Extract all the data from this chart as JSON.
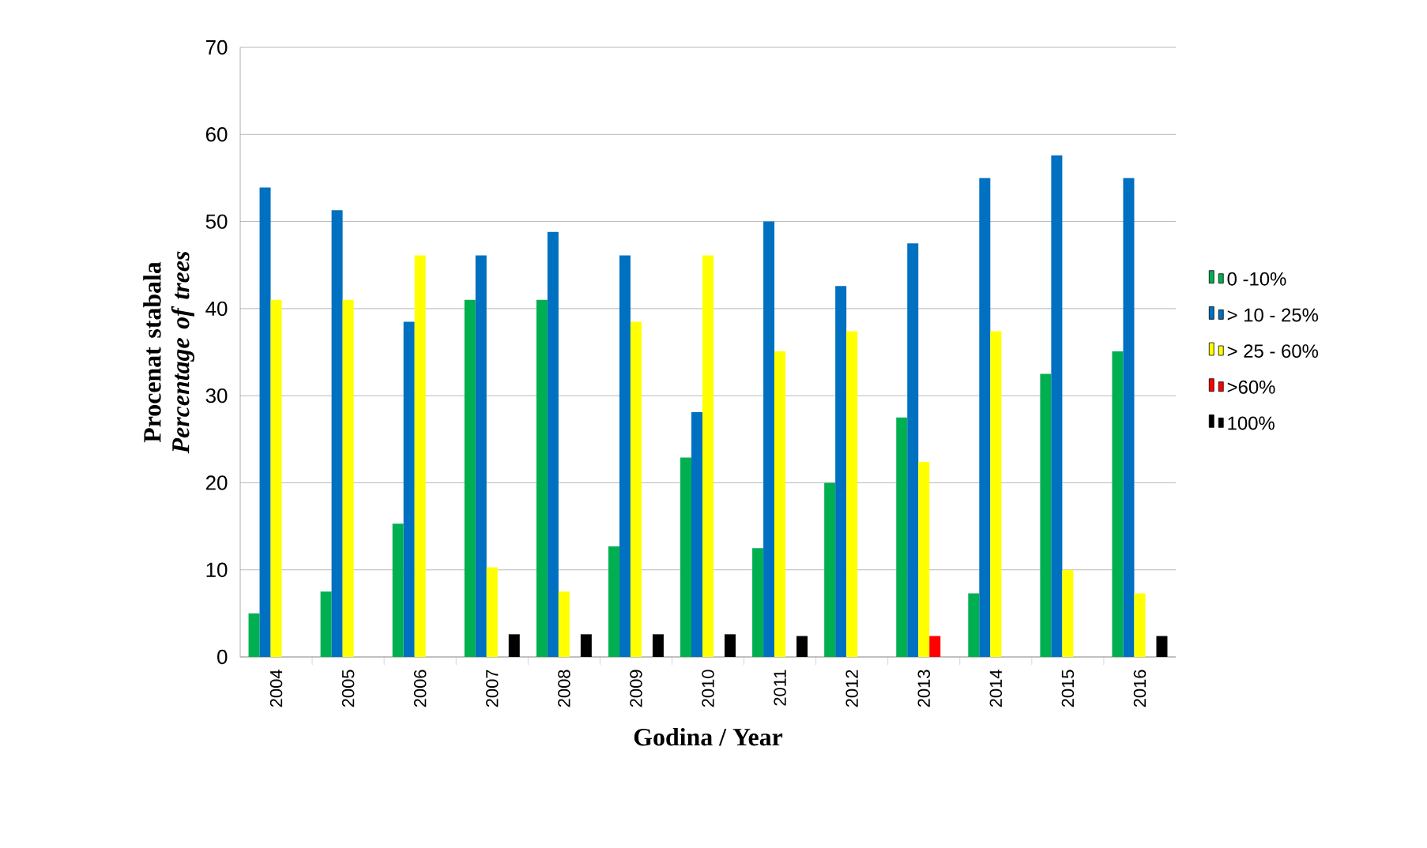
{
  "chart_data": {
    "type": "bar",
    "xlabel": "Godina / Year",
    "ylabel": "Procenat stabala *Percentage of trees*",
    "categories": [
      "2004",
      "2005",
      "2006",
      "2007",
      "2008",
      "2009",
      "2010",
      "2011",
      "2012",
      "2013",
      "2014",
      "2015",
      "2016"
    ],
    "series": [
      {
        "name": "0 -10%",
        "color": "#00b050",
        "values": [
          5,
          7.5,
          15.3,
          41,
          41,
          12.7,
          22.9,
          12.5,
          20,
          27.5,
          7.3,
          32.5,
          35.1
        ]
      },
      {
        "name": "> 10 - 25%",
        "color": "#0070c0",
        "values": [
          53.9,
          51.3,
          38.5,
          46.1,
          48.8,
          46.1,
          28.1,
          50,
          42.6,
          47.5,
          55,
          57.6,
          55
        ]
      },
      {
        "name": "> 25 - 60%",
        "color": "#ffff00",
        "values": [
          41,
          41,
          46.1,
          10.3,
          7.5,
          38.5,
          46.1,
          35.1,
          37.4,
          22.4,
          37.4,
          10,
          7.3
        ]
      },
      {
        "name": ">60%",
        "color": "#ff0000",
        "values": [
          null,
          null,
          null,
          null,
          null,
          null,
          null,
          null,
          null,
          2.4,
          null,
          null,
          null
        ]
      },
      {
        "name": "100%",
        "color": "#000000",
        "values": [
          null,
          null,
          null,
          2.6,
          2.6,
          2.6,
          2.6,
          2.4,
          null,
          null,
          null,
          null,
          2.4
        ]
      }
    ],
    "ylim": [
      0,
      70
    ],
    "yticks": [
      0,
      10,
      20,
      30,
      40,
      50,
      60,
      70
    ],
    "grid": "y",
    "legend": "right"
  }
}
